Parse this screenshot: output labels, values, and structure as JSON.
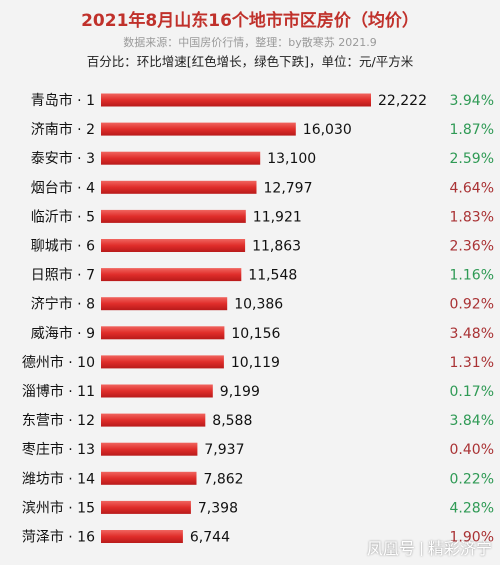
{
  "header": {
    "title": "2021年8月山东16个地市市区房价（均价）",
    "subtitle": "数据来源：中国房价行情，整理：by散寒苏 2021.9",
    "note": "百分比：环比增速[红色增长，绿色下跌]，单位：元/平方米"
  },
  "watermark": {
    "left": "凤凰号",
    "right": "精彩济宁"
  },
  "colors": {
    "bar": "#e02d2a",
    "increase": "#a93234",
    "decrease": "#2f9a55",
    "title": "#c0312b"
  },
  "chart_data": {
    "type": "bar",
    "orientation": "horizontal",
    "categories": [
      "青岛市 · 1",
      "济南市 · 2",
      "泰安市 · 3",
      "烟台市 · 4",
      "临沂市 · 5",
      "聊城市 · 6",
      "日照市 · 7",
      "济宁市 · 8",
      "威海市 · 9",
      "德州市 · 10",
      "淄博市 · 11",
      "东营市 · 12",
      "枣庄市 · 13",
      "潍坊市 · 14",
      "滨州市 · 15",
      "菏泽市 · 16"
    ],
    "values": [
      22222,
      16030,
      13100,
      12797,
      11921,
      11863,
      11548,
      10386,
      10156,
      10119,
      9199,
      8588,
      7937,
      7862,
      7398,
      6744
    ],
    "value_labels": [
      "22,222",
      "16,030",
      "13,100",
      "12,797",
      "11,921",
      "11,863",
      "11,548",
      "10,386",
      "10,156",
      "10,119",
      "9,199",
      "8,588",
      "7,937",
      "7,862",
      "7,398",
      "6,744"
    ],
    "change_labels": [
      "3.94%",
      "1.87%",
      "2.59%",
      "4.64%",
      "1.83%",
      "2.36%",
      "1.16%",
      "0.92%",
      "3.48%",
      "1.31%",
      "0.17%",
      "3.84%",
      "0.40%",
      "0.22%",
      "4.28%",
      "1.90%"
    ],
    "change_direction": [
      "down",
      "down",
      "down",
      "up",
      "up",
      "up",
      "down",
      "up",
      "up",
      "up",
      "down",
      "down",
      "up",
      "down",
      "down",
      "up"
    ],
    "xlim": [
      0,
      22222
    ]
  }
}
